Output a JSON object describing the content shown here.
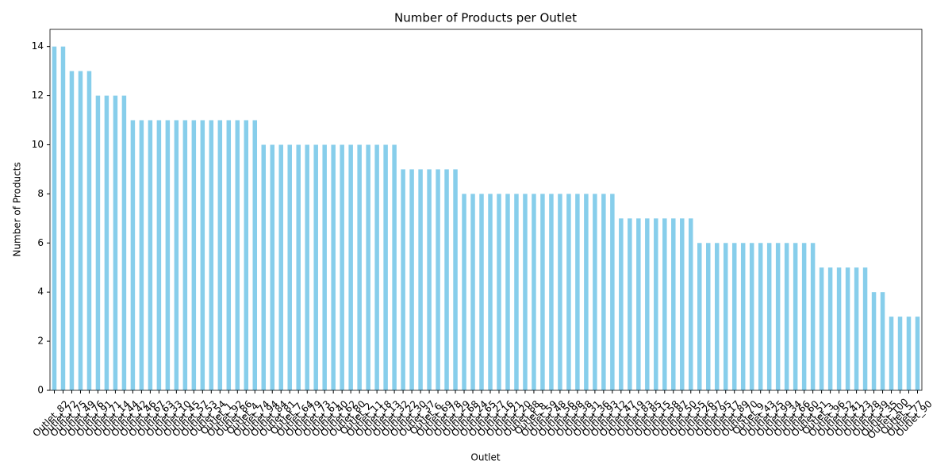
{
  "chart_data": {
    "type": "bar",
    "title": "Number of Products per Outlet",
    "x_label": "Outlet",
    "y_label": "Number of Products",
    "color": "#87ceeb",
    "categories": [
      "Outlet_82",
      "Outlet_72",
      "Outlet_75",
      "Outlet_49",
      "Outlet_76",
      "Outlet_91",
      "Outlet_71",
      "Outlet_14",
      "Outlet_44",
      "Outlet_42",
      "Outlet_46",
      "Outlet_67",
      "Outlet_63",
      "Outlet_33",
      "Outlet_10",
      "Outlet_45",
      "Outlet_57",
      "Outlet_53",
      "Outlet_54",
      "Outlet_1",
      "Outlet_92",
      "Outlet_86",
      "Outlet_4",
      "Outlet_74",
      "Outlet_94",
      "Outlet_84",
      "Outlet_81",
      "Outlet_7",
      "Outlet_64",
      "Outlet_79",
      "Outlet_73",
      "Outlet_61",
      "Outlet_40",
      "Outlet_62",
      "Outlet_80",
      "Outlet_2",
      "Outlet_11",
      "Outlet_18",
      "Outlet_13",
      "Outlet_32",
      "Outlet_22",
      "Outlet_30",
      "Outlet_37",
      "Outlet_6",
      "Outlet_69",
      "Outlet_78",
      "Outlet_29",
      "Outlet_68",
      "Outlet_24",
      "Outlet_65",
      "Outlet_27",
      "Outlet_16",
      "Outlet_21",
      "Outlet_20",
      "Outlet_88",
      "Outlet_8",
      "Outlet_59",
      "Outlet_48",
      "Outlet_56",
      "Outlet_98",
      "Outlet_38",
      "Outlet_31",
      "Outlet_36",
      "Outlet_93",
      "Outlet_12",
      "Outlet_47",
      "Outlet_19",
      "Outlet_83",
      "Outlet_85",
      "Outlet_15",
      "Outlet_58",
      "Outlet_87",
      "Outlet_50",
      "Outlet_55",
      "Outlet_26",
      "Outlet_97",
      "Outlet_95",
      "Outlet_17",
      "Outlet_89",
      "Outlet_70",
      "Outlet_9",
      "Outlet_43",
      "Outlet_25",
      "Outlet_99",
      "Outlet_34",
      "Outlet_66",
      "Outlet_60",
      "Outlet_51",
      "Outlet_3",
      "Outlet_96",
      "Outlet_52",
      "Outlet_41",
      "Outlet_23",
      "Outlet_28",
      "Outlet_39",
      "Outlet_35",
      "Outlet_100",
      "Outlet_5",
      "Outlet_77",
      "Outlet_90"
    ],
    "values": [
      14,
      14,
      13,
      13,
      13,
      12,
      12,
      12,
      12,
      11,
      11,
      11,
      11,
      11,
      11,
      11,
      11,
      11,
      11,
      11,
      11,
      11,
      11,
      11,
      10,
      10,
      10,
      10,
      10,
      10,
      10,
      10,
      10,
      10,
      10,
      10,
      10,
      10,
      10,
      10,
      9,
      9,
      9,
      9,
      9,
      9,
      9,
      8,
      8,
      8,
      8,
      8,
      8,
      8,
      8,
      8,
      8,
      8,
      8,
      8,
      8,
      8,
      8,
      8,
      8,
      7,
      7,
      7,
      7,
      7,
      7,
      7,
      7,
      7,
      6,
      6,
      6,
      6,
      6,
      6,
      6,
      6,
      6,
      6,
      6,
      6,
      6,
      6,
      5,
      5,
      5,
      5,
      5,
      5,
      4,
      4,
      3,
      3,
      3,
      3
    ],
    "ylim": [
      0,
      14.7
    ],
    "yticks": [
      0,
      2,
      4,
      6,
      8,
      10,
      12,
      14
    ]
  }
}
